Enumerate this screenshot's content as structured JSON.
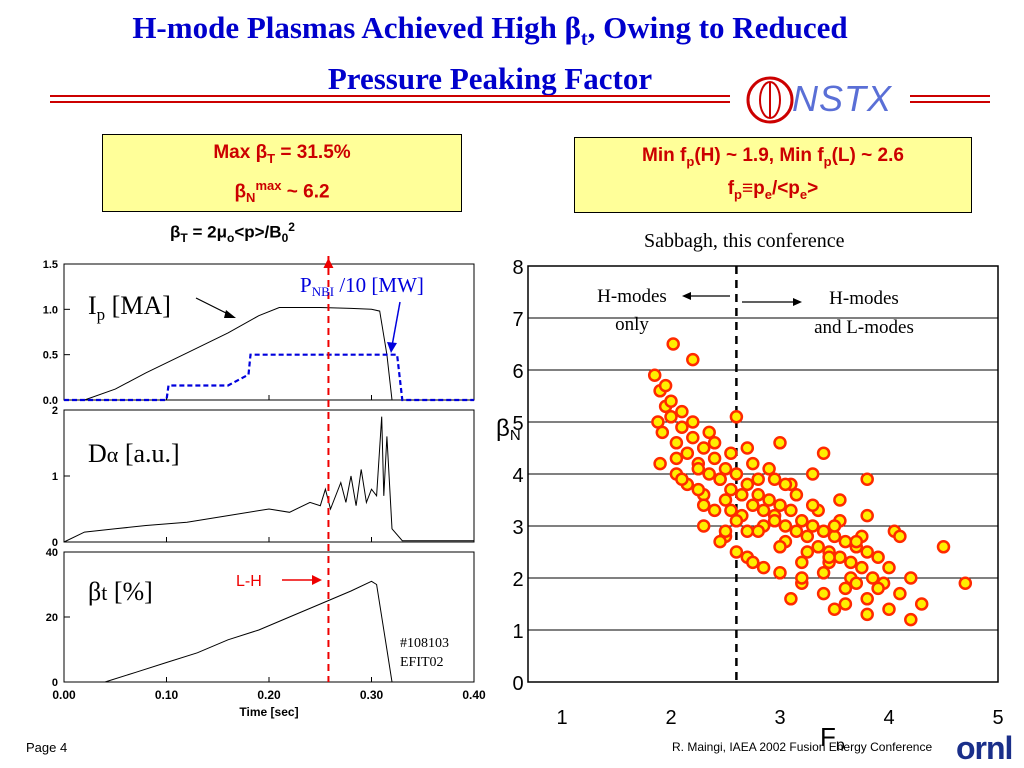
{
  "slide": {
    "title_line1": "H-mode Plasmas Achieved High β",
    "title_sub": "t",
    "title_line1_end": ", Owing to Reduced",
    "title_line2": "Pressure Peaking Factor",
    "logo_text": "NSTX",
    "box_left": {
      "l1_a": "Max β",
      "l1_sub": "T",
      "l1_b": " = 31.5%",
      "l2_a": "β",
      "l2_sub": "N",
      "l2_sup": "max",
      "l2_b": " ~ 6.2"
    },
    "box_right": {
      "l1_a": "Min f",
      "l1_sub1": "p",
      "l1_b": "(H) ~ 1.9, Min f",
      "l1_sub2": "p",
      "l1_c": "(L) ~ 2.6",
      "l2_a": "f",
      "l2_sub1": "p",
      "l2_b": "≡p",
      "l2_sub2": "e",
      "l2_c": "/<p",
      "l2_sub3": "e",
      "l2_d": ">"
    },
    "equation": {
      "a": "β",
      "sub1": "T",
      "b": " = 2μ",
      "sub2": "o",
      "c": "<p>/B",
      "sub3": "0",
      "sup": "2"
    },
    "credit": "Sabbagh, this conference",
    "footer_left": "Page 4",
    "footer_right": "R. Maingi, IAEA 2002 Fusion Energy Conference",
    "footer_logo": "ornl",
    "colors": {
      "title": "#0000cc",
      "accent_red": "#cc0000",
      "box_fill": "#ffff99",
      "nbi_blue": "#0000dd"
    }
  },
  "chart_data": [
    {
      "type": "line",
      "panel": "Ip",
      "label_main": "I",
      "label_sub": "p",
      "label_unit": " [MA]",
      "ylim": [
        0,
        1.5
      ],
      "yticks": [
        "1.5",
        "1.0",
        "0.5",
        "0.0"
      ],
      "series": [
        {
          "name": "Ip",
          "color": "#000000",
          "x": [
            0.02,
            0.05,
            0.08,
            0.12,
            0.16,
            0.19,
            0.21,
            0.25,
            0.28,
            0.3,
            0.308,
            0.315,
            0.32,
            0.33,
            0.4
          ],
          "y": [
            0.0,
            0.12,
            0.3,
            0.52,
            0.74,
            0.93,
            1.02,
            1.02,
            1.01,
            1.0,
            0.98,
            0.5,
            0.0,
            0.0,
            0.0
          ]
        },
        {
          "name": "P_NBI/10",
          "color": "#0000dd",
          "dashed": true,
          "x": [
            0.0,
            0.1,
            0.102,
            0.16,
            0.18,
            0.182,
            0.245,
            0.25,
            0.252,
            0.325,
            0.33,
            0.4
          ],
          "y": [
            0.0,
            0.0,
            0.16,
            0.16,
            0.28,
            0.5,
            0.5,
            0.5,
            0.5,
            0.5,
            0.0,
            0.0
          ]
        }
      ],
      "annotations": {
        "nbi_main": "P",
        "nbi_sub": "NBI",
        "nbi_unit": " /10 [MW]"
      }
    },
    {
      "type": "line",
      "panel": "D_alpha",
      "label_main": "D",
      "label_sub": "α",
      "label_unit": " [a.u.]",
      "ylim": [
        0,
        2
      ],
      "yticks": [
        "2",
        "1",
        "0"
      ],
      "series": [
        {
          "name": "D_alpha",
          "color": "#000000",
          "x": [
            0.0,
            0.02,
            0.05,
            0.08,
            0.12,
            0.16,
            0.2,
            0.22,
            0.24,
            0.25,
            0.255,
            0.26,
            0.27,
            0.275,
            0.28,
            0.285,
            0.29,
            0.295,
            0.3,
            0.305,
            0.31,
            0.312,
            0.315,
            0.32,
            0.33,
            0.4
          ],
          "y": [
            0.0,
            0.15,
            0.2,
            0.25,
            0.3,
            0.4,
            0.5,
            0.45,
            0.6,
            0.55,
            0.8,
            0.5,
            0.9,
            0.6,
            1.0,
            0.55,
            1.1,
            0.6,
            0.8,
            0.7,
            1.9,
            0.7,
            1.6,
            0.2,
            0.02,
            0.02
          ]
        }
      ]
    },
    {
      "type": "line",
      "panel": "beta_t",
      "label_main": "β",
      "label_sub": "t",
      "label_unit": " [%]",
      "ylim": [
        0,
        40
      ],
      "yticks": [
        "40",
        "20",
        "0"
      ],
      "xlim": [
        0.0,
        0.4
      ],
      "xticks": [
        "0.00",
        "0.10",
        "0.20",
        "0.30",
        "0.40"
      ],
      "xlabel": "Time [sec]",
      "series": [
        {
          "name": "beta_t",
          "color": "#000000",
          "x": [
            0.04,
            0.07,
            0.1,
            0.13,
            0.16,
            0.19,
            0.22,
            0.25,
            0.28,
            0.3,
            0.305,
            0.315,
            0.32
          ],
          "y": [
            0.0,
            3.0,
            6.0,
            9.0,
            13.0,
            16.0,
            20.0,
            24.0,
            28.0,
            31.0,
            30.0,
            10.0,
            0.0
          ]
        }
      ],
      "annotations": {
        "lh_label": "L-H",
        "shot": "#108103",
        "code": "EFIT02",
        "lh_time": 0.258
      }
    },
    {
      "type": "scatter",
      "panel": "betaN_vs_Fp",
      "xlabel_main": "F",
      "xlabel_sub": "p",
      "ylabel_main": "β",
      "ylabel_sub": "N",
      "xlim": [
        1,
        5
      ],
      "ylim": [
        0,
        8
      ],
      "xticks": [
        "1",
        "2",
        "3",
        "4",
        "5"
      ],
      "yticks": [
        "0",
        "1",
        "2",
        "3",
        "4",
        "5",
        "6",
        "7",
        "8"
      ],
      "divider_x": 2.6,
      "annotations": {
        "left_l1": "H-modes",
        "left_l2": "only",
        "right_l1": "H-modes",
        "right_l2": "and L-modes"
      },
      "series": [
        {
          "name": "shots",
          "color": "#ff2a00",
          "x": [
            1.85,
            1.9,
            1.95,
            2.0,
            2.02,
            1.88,
            1.92,
            2.05,
            2.1,
            2.15,
            2.2,
            2.25,
            2.3,
            2.35,
            2.4,
            2.45,
            2.5,
            2.55,
            2.6,
            2.65,
            2.7,
            2.75,
            2.8,
            2.85,
            2.9,
            2.95,
            3.0,
            3.05,
            3.1,
            3.15,
            3.2,
            3.25,
            3.3,
            3.35,
            3.4,
            3.45,
            3.5,
            3.55,
            3.6,
            3.65,
            3.7,
            3.75,
            3.8,
            3.85,
            3.9,
            3.95,
            4.0,
            4.1,
            4.2,
            4.3,
            4.7,
            4.5,
            2.25,
            2.05,
            2.3,
            2.4,
            2.5,
            2.55,
            2.65,
            2.75,
            2.85,
            2.95,
            3.05,
            3.15,
            3.25,
            3.35,
            3.45,
            3.55,
            3.65,
            3.75,
            3.9,
            4.05,
            2.0,
            2.1,
            2.2,
            2.35,
            2.45,
            2.6,
            2.7,
            2.8,
            2.9,
            3.0,
            3.1,
            3.2,
            3.3,
            3.4,
            3.5,
            3.6,
            3.7,
            3.8,
            1.95,
            2.05,
            2.15,
            2.25,
            2.4,
            2.5,
            2.6,
            2.7,
            2.85,
            3.0,
            3.2,
            3.4,
            3.6,
            3.8,
            4.0,
            4.2,
            2.3,
            2.55,
            2.8,
            3.05,
            3.3,
            3.55,
            3.8,
            4.1,
            2.45,
            2.7,
            2.95,
            3.2,
            3.45,
            3.7,
            2.2,
            2.6,
            3.0,
            3.4,
            3.8,
            1.9,
            2.1,
            2.3,
            2.5,
            2.75,
            3.1,
            3.5
          ],
          "y": [
            5.9,
            5.6,
            5.3,
            5.1,
            6.5,
            5.0,
            4.8,
            4.6,
            4.9,
            4.4,
            4.7,
            4.2,
            4.5,
            4.0,
            4.3,
            3.9,
            4.1,
            3.7,
            4.0,
            3.6,
            3.8,
            3.4,
            3.9,
            3.3,
            3.5,
            3.2,
            3.4,
            3.0,
            3.3,
            2.9,
            3.1,
            2.8,
            3.0,
            2.6,
            2.9,
            2.5,
            2.8,
            2.4,
            2.7,
            2.3,
            2.6,
            2.2,
            2.5,
            2.0,
            2.4,
            1.9,
            2.2,
            1.7,
            2.0,
            1.5,
            1.9,
            2.6,
            4.1,
            4.3,
            3.6,
            4.6,
            3.5,
            4.4,
            3.2,
            4.2,
            3.0,
            3.9,
            2.7,
            3.6,
            2.5,
            3.3,
            2.3,
            3.1,
            2.0,
            2.8,
            1.8,
            2.9,
            5.4,
            5.2,
            5.0,
            4.8,
            3.9,
            3.1,
            4.5,
            2.9,
            4.1,
            2.6,
            3.8,
            2.3,
            3.4,
            2.1,
            3.0,
            1.8,
            2.7,
            1.6,
            5.7,
            4.0,
            3.8,
            3.7,
            3.3,
            2.8,
            2.5,
            2.4,
            2.2,
            2.1,
            1.9,
            1.7,
            1.5,
            1.3,
            1.4,
            1.2,
            3.0,
            3.3,
            3.6,
            3.8,
            4.0,
            3.5,
            3.2,
            2.8,
            2.7,
            2.9,
            3.1,
            2.0,
            2.4,
            1.9,
            6.2,
            5.1,
            4.6,
            4.4,
            3.9,
            4.2,
            3.9,
            3.4,
            2.9,
            2.3,
            1.6,
            1.4
          ]
        }
      ]
    }
  ]
}
